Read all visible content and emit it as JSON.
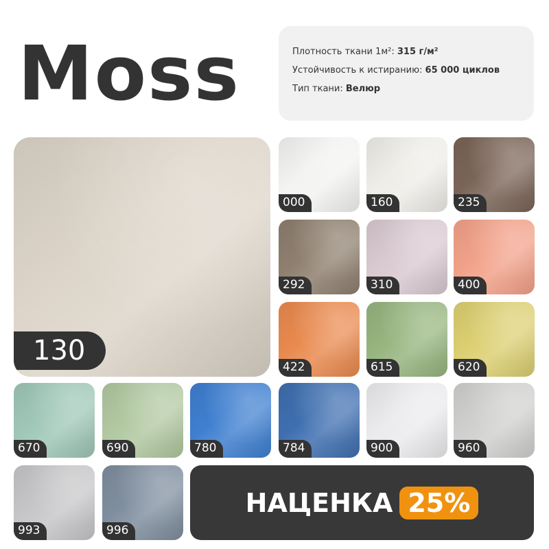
{
  "title": "Moss",
  "specs": {
    "density_label": "Плотность ткани 1м²:",
    "density_value": "315 г/м²",
    "abrasion_label": "Устойчивость к истиранию:",
    "abrasion_value": "65 000 циклов",
    "type_label": "Тип ткани:",
    "type_value": "Велюр"
  },
  "main_swatch": {
    "code": "130",
    "color": "#ddd5c9"
  },
  "swatches": [
    {
      "code": "000",
      "color": "#f3f3f1"
    },
    {
      "code": "160",
      "color": "#eeede8"
    },
    {
      "code": "235",
      "color": "#7a6457"
    },
    {
      "code": "292",
      "color": "#8e7f6f"
    },
    {
      "code": "310",
      "color": "#d9c9d1"
    },
    {
      "code": "400",
      "color": "#f2a189"
    },
    {
      "code": "422",
      "color": "#e98a4f"
    },
    {
      "code": "615",
      "color": "#97b57f"
    },
    {
      "code": "620",
      "color": "#dccf72"
    },
    {
      "code": "670",
      "color": "#9fc7b7"
    },
    {
      "code": "690",
      "color": "#b1c8a1"
    },
    {
      "code": "780",
      "color": "#3f7fd0"
    },
    {
      "code": "784",
      "color": "#3f6fb0"
    },
    {
      "code": "900",
      "color": "#ebebed"
    },
    {
      "code": "960",
      "color": "#d0d0ce"
    },
    {
      "code": "993",
      "color": "#c6c6c8"
    },
    {
      "code": "996",
      "color": "#7f8e9e"
    }
  ],
  "promo": {
    "label": "НАЦЕНКА",
    "value": "25%",
    "accent": "#f0920f"
  }
}
